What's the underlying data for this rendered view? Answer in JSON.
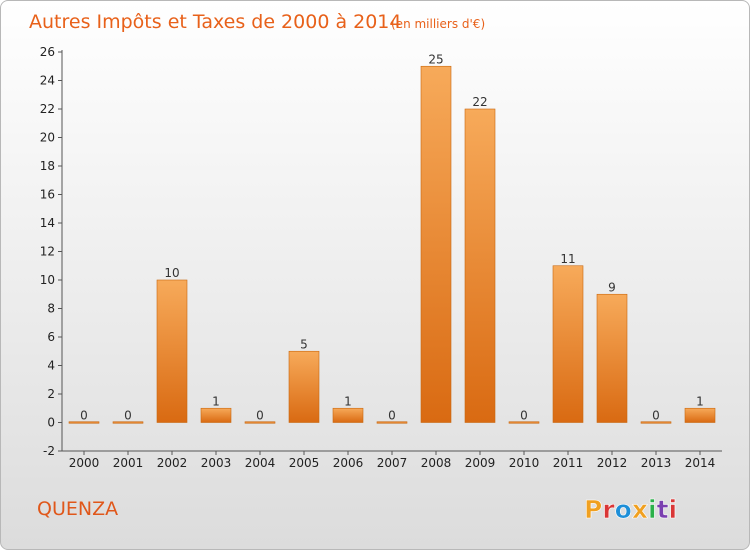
{
  "chart_data": {
    "type": "bar",
    "title": "Autres Impôts et Taxes de 2000 à 2014",
    "subtitle": "(en milliers d'€)",
    "categories": [
      "2000",
      "2001",
      "2002",
      "2003",
      "2004",
      "2005",
      "2006",
      "2007",
      "2008",
      "2009",
      "2010",
      "2011",
      "2012",
      "2013",
      "2014"
    ],
    "values": [
      0,
      0,
      10,
      1,
      0,
      5,
      1,
      0,
      25,
      22,
      0,
      11,
      9,
      0,
      1
    ],
    "ylim": [
      -2,
      26
    ],
    "yticks": [
      -2,
      0,
      2,
      4,
      6,
      8,
      10,
      12,
      14,
      16,
      18,
      20,
      22,
      24,
      26
    ],
    "grid": false,
    "bar_color": "#f08a2e",
    "bar_color_light": "#f7aa5a",
    "bar_color_dark": "#d96a12"
  },
  "footer": {
    "place": "QUENZA",
    "logo": "Proxiti",
    "logo_colors": [
      "#f0a020",
      "#d93636",
      "#1e8fd8",
      "#f0a020",
      "#2bb04a",
      "#7a3fb0",
      "#d93636"
    ]
  }
}
